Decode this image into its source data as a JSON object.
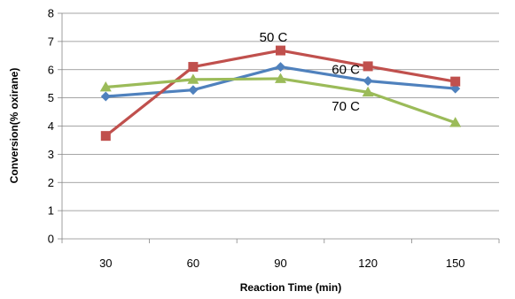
{
  "chart_data": {
    "type": "line",
    "title": "",
    "xlabel": "Reaction Time (min)",
    "ylabel": "Conversion(% oxirane)",
    "categories": [
      "30",
      "60",
      "90",
      "120",
      "150"
    ],
    "ylim": [
      0,
      8
    ],
    "yticks": [
      "0",
      "1",
      "2",
      "3",
      "4",
      "5",
      "6",
      "7",
      "8"
    ],
    "grid": true,
    "legend": "none",
    "series": [
      {
        "values": [
          5.05,
          5.28,
          6.1,
          5.6,
          5.33
        ],
        "color": "#4f81bd",
        "marker": "diamond"
      },
      {
        "values": [
          3.65,
          6.1,
          6.68,
          6.12,
          5.58
        ],
        "color": "#c0504d",
        "marker": "square"
      },
      {
        "values": [
          5.38,
          5.65,
          5.68,
          5.2,
          4.12
        ],
        "color": "#9bbb59",
        "marker": "triangle"
      }
    ],
    "annotations": [
      {
        "text": "50 C",
        "x": "90",
        "y": 7.0
      },
      {
        "text": "60 C",
        "x": "120",
        "y": 5.85
      },
      {
        "text": "70 C",
        "x": "120",
        "y": 4.55
      }
    ]
  }
}
